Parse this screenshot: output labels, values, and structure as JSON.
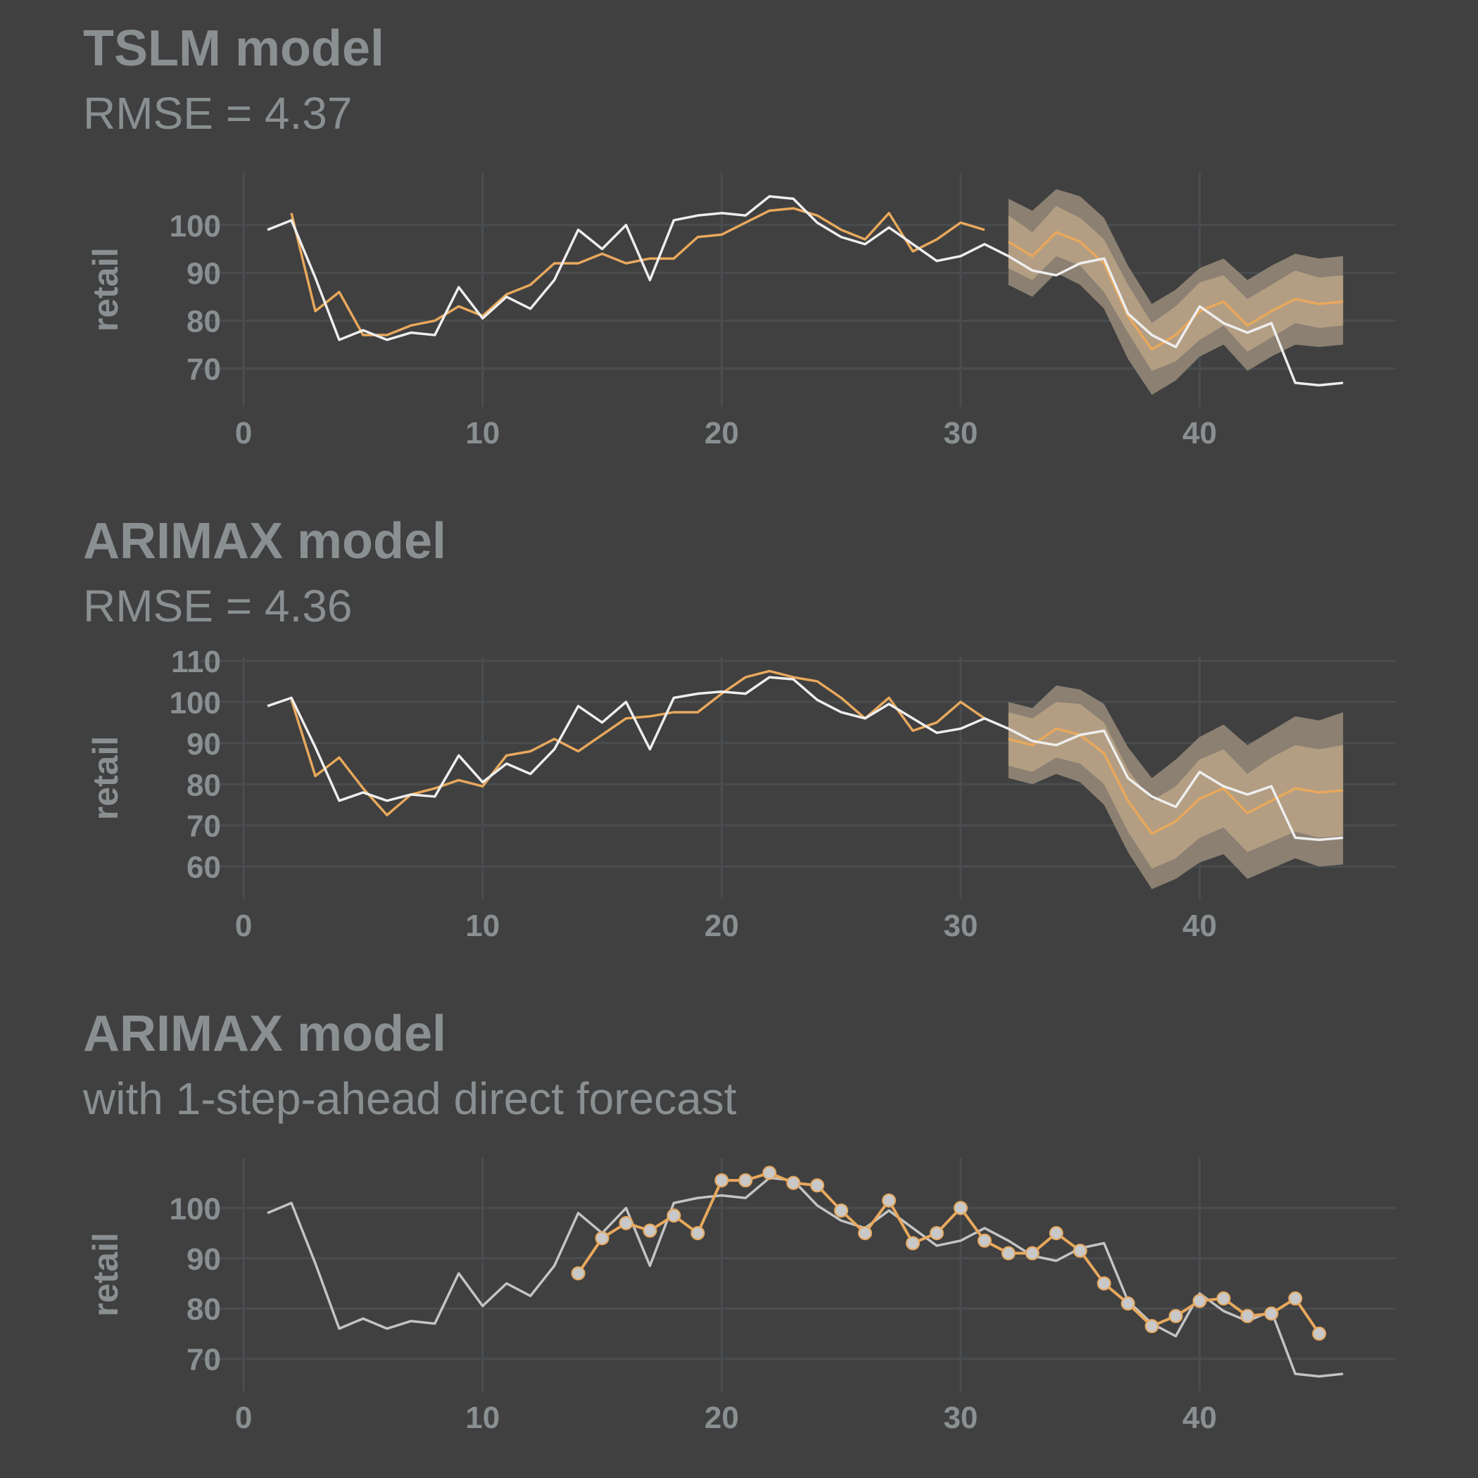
{
  "colors": {
    "background": "#404040",
    "text": "#8a8f92",
    "grid": "#4a4d50",
    "actual": "#eeeeee",
    "actual_muted": "#c4c4c4",
    "fitted": "#e8a85c",
    "band_outer": "#8b8072",
    "band_inner": "#b39e83",
    "point": "#c8c8c8"
  },
  "chart_data": [
    {
      "type": "line",
      "title": "TSLM model",
      "subtitle": "RMSE = 4.37",
      "ylabel": "retail",
      "xlabel": "",
      "xlim": [
        -1.8,
        48.2
      ],
      "ylim": [
        62,
        111
      ],
      "xticks": [
        0,
        10,
        20,
        30,
        40
      ],
      "yticks": [
        70,
        80,
        90,
        100
      ],
      "grid": true,
      "series": [
        {
          "role": "actual",
          "x": [
            1,
            2,
            3,
            4,
            5,
            6,
            7,
            8,
            9,
            10,
            11,
            12,
            13,
            14,
            15,
            16,
            17,
            18,
            19,
            20,
            21,
            22,
            23,
            24,
            25,
            26,
            27,
            28,
            29,
            30,
            31,
            32,
            33,
            34,
            35,
            36,
            37,
            38,
            39,
            40,
            41,
            42,
            43,
            44,
            45,
            46
          ],
          "y": [
            99,
            101,
            89,
            76,
            78,
            76,
            77.5,
            77,
            87,
            80.5,
            85,
            82.5,
            88.5,
            99,
            95,
            100,
            88.5,
            101,
            102,
            102.5,
            102,
            106,
            105.5,
            100.5,
            97.5,
            96,
            99.5,
            96,
            92.5,
            93.5,
            96,
            93.5,
            90.5,
            89.5,
            92,
            93,
            81.5,
            77,
            74.5,
            83,
            79.5,
            77.5,
            79.5,
            67,
            66.5,
            67
          ]
        },
        {
          "role": "fitted",
          "x": [
            2,
            3,
            4,
            5,
            6,
            7,
            8,
            9,
            10,
            11,
            12,
            13,
            14,
            15,
            16,
            17,
            18,
            19,
            20,
            21,
            22,
            23,
            24,
            25,
            26,
            27,
            28,
            29,
            30,
            31
          ],
          "y": [
            102.5,
            82,
            86,
            77,
            77,
            79,
            80,
            83,
            81,
            85.5,
            87.5,
            92,
            92,
            94,
            92,
            93,
            93,
            97.5,
            98,
            100.5,
            103,
            103.5,
            102,
            99,
            97,
            102.5,
            94.5,
            97,
            100.5,
            99
          ]
        },
        {
          "role": "forecast",
          "x": [
            32,
            33,
            34,
            35,
            36,
            37,
            38,
            39,
            40,
            41,
            42,
            43,
            44,
            45,
            46
          ],
          "y": [
            96.5,
            93.5,
            98.5,
            96.5,
            92,
            81,
            74,
            77,
            82,
            84,
            79,
            82,
            84.5,
            83.5,
            84
          ],
          "lo80": [
            91,
            88.5,
            93.5,
            91.5,
            86,
            77.5,
            69.5,
            71.5,
            76,
            79,
            73.5,
            76.5,
            79.5,
            78.5,
            79
          ],
          "hi80": [
            102,
            98.5,
            104,
            101.5,
            97,
            87.5,
            79.5,
            83,
            88,
            89.5,
            84.5,
            87.5,
            90.5,
            89,
            89.5
          ],
          "lo95": [
            87.5,
            85,
            90,
            87.5,
            82.5,
            72,
            64.5,
            67.5,
            72.5,
            75,
            69.5,
            72.5,
            75,
            74.5,
            75
          ],
          "hi95": [
            105.5,
            103,
            107.5,
            106,
            101.5,
            91.5,
            83.5,
            86.5,
            91,
            93,
            88.5,
            91.5,
            94,
            93,
            93.5
          ]
        }
      ]
    },
    {
      "type": "line",
      "title": "ARIMAX model",
      "subtitle": "RMSE = 4.36",
      "ylabel": "retail",
      "xlabel": "",
      "xlim": [
        -1.8,
        48.2
      ],
      "ylim": [
        52,
        111
      ],
      "xticks": [
        0,
        10,
        20,
        30,
        40
      ],
      "yticks": [
        60,
        70,
        80,
        90,
        100,
        110
      ],
      "grid": true,
      "series": [
        {
          "role": "actual",
          "x": [
            1,
            2,
            3,
            4,
            5,
            6,
            7,
            8,
            9,
            10,
            11,
            12,
            13,
            14,
            15,
            16,
            17,
            18,
            19,
            20,
            21,
            22,
            23,
            24,
            25,
            26,
            27,
            28,
            29,
            30,
            31,
            32,
            33,
            34,
            35,
            36,
            37,
            38,
            39,
            40,
            41,
            42,
            43,
            44,
            45,
            46
          ],
          "y": [
            99,
            101,
            89,
            76,
            78,
            76,
            77.5,
            77,
            87,
            80.5,
            85,
            82.5,
            88.5,
            99,
            95,
            100,
            88.5,
            101,
            102,
            102.5,
            102,
            106,
            105.5,
            100.5,
            97.5,
            96,
            99.5,
            96,
            92.5,
            93.5,
            96,
            93.5,
            90.5,
            89.5,
            92,
            93,
            81.5,
            77,
            74.5,
            83,
            79.5,
            77.5,
            79.5,
            67,
            66.5,
            67
          ]
        },
        {
          "role": "fitted",
          "x": [
            2,
            3,
            4,
            5,
            6,
            7,
            8,
            9,
            10,
            11,
            12,
            13,
            14,
            15,
            16,
            17,
            18,
            19,
            20,
            21,
            22,
            23,
            24,
            25,
            26,
            27,
            28,
            29,
            30,
            31
          ],
          "y": [
            100.5,
            82,
            86.5,
            79,
            72.5,
            77.5,
            79,
            81,
            79.5,
            87,
            88,
            91,
            88,
            92,
            96,
            96.5,
            97.5,
            97.5,
            102,
            106,
            107.5,
            106,
            105,
            101,
            96,
            101,
            93,
            95,
            100,
            96
          ]
        },
        {
          "role": "forecast",
          "x": [
            32,
            33,
            34,
            35,
            36,
            37,
            38,
            39,
            40,
            41,
            42,
            43,
            44,
            45,
            46
          ],
          "y": [
            91,
            89.5,
            93.5,
            92,
            87.5,
            76,
            68,
            71,
            76.5,
            79,
            73,
            76,
            79,
            78,
            78.5
          ],
          "lo80": [
            84.5,
            83,
            86.5,
            85,
            80,
            68.5,
            59.5,
            62,
            67,
            69.5,
            63.5,
            66,
            68.5,
            67,
            67.5
          ],
          "hi80": [
            97.5,
            96,
            100,
            99.5,
            95,
            83.5,
            76,
            79.5,
            86,
            88.5,
            82.5,
            86.5,
            89.5,
            88.5,
            89.5
          ],
          "lo95": [
            81.5,
            80,
            82.5,
            80.5,
            75,
            63.5,
            54.5,
            57,
            61,
            63,
            57,
            59.5,
            62,
            60,
            60.5
          ],
          "hi95": [
            100,
            98.5,
            104,
            103,
            99.5,
            89,
            81.5,
            86,
            91.5,
            94.5,
            89.5,
            93,
            96.5,
            95.5,
            97.5
          ]
        }
      ]
    },
    {
      "type": "line",
      "title": "ARIMAX model",
      "subtitle": "with 1-step-ahead direct forecast",
      "ylabel": "retail",
      "xlabel": "",
      "xlim": [
        -1.8,
        48.2
      ],
      "ylim": [
        63.5,
        110
      ],
      "xticks": [
        0,
        10,
        20,
        30,
        40
      ],
      "yticks": [
        70,
        80,
        90,
        100
      ],
      "grid": true,
      "series": [
        {
          "role": "actual",
          "x": [
            1,
            2,
            3,
            4,
            5,
            6,
            7,
            8,
            9,
            10,
            11,
            12,
            13,
            14,
            15,
            16,
            17,
            18,
            19,
            20,
            21,
            22,
            23,
            24,
            25,
            26,
            27,
            28,
            29,
            30,
            31,
            32,
            33,
            34,
            35,
            36,
            37,
            38,
            39,
            40,
            41,
            42,
            43,
            44,
            45,
            46
          ],
          "y": [
            99,
            101,
            89,
            76,
            78,
            76,
            77.5,
            77,
            87,
            80.5,
            85,
            82.5,
            88.5,
            99,
            95,
            100,
            88.5,
            101,
            102,
            102.5,
            102,
            106,
            105.5,
            100.5,
            97.5,
            96,
            99.5,
            96,
            92.5,
            93.5,
            96,
            93.5,
            90.5,
            89.5,
            92,
            93,
            81.5,
            77,
            74.5,
            83,
            79.5,
            77.5,
            79.5,
            67,
            66.5,
            67
          ]
        },
        {
          "role": "one_step_forecast",
          "x": [
            14,
            15,
            16,
            17,
            18,
            19,
            20,
            21,
            22,
            23,
            24,
            25,
            26,
            27,
            28,
            29,
            30,
            31,
            32,
            33,
            34,
            35,
            36,
            37,
            38,
            39,
            40,
            41,
            42,
            43,
            44,
            45
          ],
          "y": [
            87,
            94,
            97,
            95.5,
            98.5,
            95,
            105.5,
            105.5,
            107,
            105,
            104.5,
            99.5,
            95,
            101.5,
            93,
            95,
            100,
            93.5,
            91,
            91,
            95,
            91.5,
            85,
            81,
            76.5,
            78.5,
            81.5,
            82,
            78.5,
            79,
            82,
            75
          ]
        }
      ]
    }
  ]
}
